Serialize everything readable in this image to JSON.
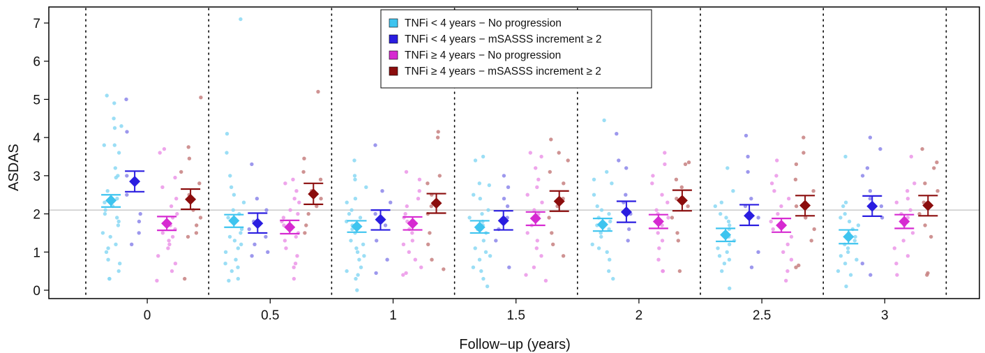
{
  "chart_data": {
    "type": "scatter",
    "xlabel": "Follow−up (years)",
    "ylabel": "ASDAS",
    "ylim": [
      -0.25,
      7.35
    ],
    "y_ticks": [
      "0",
      "1",
      "2",
      "3",
      "4",
      "5",
      "6",
      "7"
    ],
    "reference_line_y": 2.1,
    "categories": [
      "0",
      "0.5",
      "1",
      "1.5",
      "2",
      "2.5",
      "3"
    ],
    "legend": {
      "placement": "top-center",
      "entries": [
        {
          "label": "TNFi < 4 years − No progression",
          "color": "#3ec4ef"
        },
        {
          "label": "TNFi < 4 years − mSASSS increment  ≥ 2",
          "color": "#2a1de0"
        },
        {
          "label": "TNFi ≥ 4 years − No progression",
          "color": "#d62ad1"
        },
        {
          "label": "TNFi ≥ 4 years − mSASSS increment ≥ 2",
          "color": "#8b0d0d"
        }
      ]
    },
    "series": [
      {
        "name": "TNFi < 4 years − No progression",
        "color": "#3ec4ef",
        "light_color": "#8ad8f3",
        "mean": [
          2.35,
          1.82,
          1.67,
          1.65,
          1.72,
          1.45,
          1.4
        ],
        "ci_low": [
          2.18,
          1.65,
          1.52,
          1.5,
          1.55,
          1.28,
          1.22
        ],
        "ci_high": [
          2.5,
          1.98,
          1.82,
          1.82,
          1.88,
          1.62,
          1.58
        ],
        "points": [
          [
            4.9,
            5.1,
            4.5,
            4.3,
            4.25,
            3.8,
            3.8,
            3.6,
            3.2,
            3.0,
            2.95,
            2.6,
            2.4,
            2.3,
            2.2,
            2.1,
            2.0,
            1.9,
            1.8,
            1.7,
            1.5,
            1.4,
            1.2,
            1.1,
            1.0,
            0.8,
            0.7,
            0.5,
            0.3,
            0.3
          ],
          [
            7.1,
            4.1,
            3.6,
            3.0,
            2.7,
            2.5,
            2.3,
            2.1,
            2.0,
            1.9,
            1.8,
            1.6,
            1.5,
            1.4,
            1.3,
            1.2,
            1.1,
            1.0,
            0.8,
            0.7,
            0.6,
            0.5,
            0.3,
            0.25
          ],
          [
            3.4,
            3.0,
            2.9,
            2.7,
            2.4,
            2.3,
            2.1,
            2.0,
            1.9,
            1.8,
            1.7,
            1.6,
            1.5,
            1.3,
            1.2,
            1.1,
            1.0,
            0.9,
            0.8,
            0.6,
            0.5,
            0.4,
            0.3,
            0.0
          ],
          [
            3.5,
            3.4,
            2.8,
            2.75,
            2.5,
            2.4,
            2.1,
            2.0,
            1.9,
            1.8,
            1.7,
            1.6,
            1.5,
            1.3,
            1.1,
            1.0,
            0.9,
            0.8,
            0.6,
            0.5,
            0.3,
            0.1
          ],
          [
            4.45,
            3.1,
            2.9,
            2.8,
            2.5,
            2.2,
            2.1,
            2.0,
            1.9,
            1.8,
            1.7,
            1.6,
            1.5,
            1.4,
            1.2,
            1.1,
            1.0,
            0.8,
            0.5,
            0.3
          ],
          [
            3.2,
            2.6,
            2.3,
            2.2,
            2.0,
            1.9,
            1.8,
            1.7,
            1.6,
            1.5,
            1.4,
            1.3,
            1.2,
            1.1,
            1.0,
            0.9,
            0.8,
            0.7,
            0.5,
            0.05
          ],
          [
            3.5,
            2.3,
            2.2,
            2.0,
            1.9,
            1.8,
            1.7,
            1.6,
            1.5,
            1.4,
            1.3,
            1.2,
            1.1,
            1.0,
            0.9,
            0.8,
            0.7,
            0.5,
            0.4,
            0.1
          ]
        ]
      },
      {
        "name": "TNFi < 4 years − mSASSS increment  ≥ 2",
        "color": "#2a1de0",
        "light_color": "#8c86ea",
        "mean": [
          2.85,
          1.75,
          1.85,
          1.82,
          2.05,
          1.95,
          2.2
        ],
        "ci_low": [
          2.58,
          1.5,
          1.58,
          1.58,
          1.78,
          1.7,
          1.94
        ],
        "ci_high": [
          3.12,
          2.02,
          2.1,
          2.08,
          2.33,
          2.24,
          2.47
        ],
        "points": [
          [
            5.0,
            4.15,
            3.0,
            2.5,
            2.0,
            1.8,
            1.5,
            1.2
          ],
          [
            3.3,
            2.4,
            2.1,
            1.8,
            1.6,
            1.4,
            1.2,
            1.0,
            0.9
          ],
          [
            3.8,
            2.6,
            2.3,
            2.0,
            1.7,
            1.3,
            0.8,
            0.45
          ],
          [
            3.0,
            2.7,
            2.4,
            2.2,
            1.9,
            1.6,
            1.3,
            0.6
          ],
          [
            4.1,
            3.4,
            3.2,
            2.5,
            2.3,
            2.0,
            1.6,
            1.3
          ],
          [
            4.05,
            3.5,
            3.1,
            2.4,
            2.2,
            1.9,
            1.0,
            0.6
          ],
          [
            4.0,
            3.7,
            3.2,
            3.0,
            2.6,
            2.4,
            2.2,
            1.9,
            0.7,
            0.4
          ]
        ]
      },
      {
        "name": "TNFi ≥ 4 years − No progression",
        "color": "#d62ad1",
        "light_color": "#eb95e7",
        "mean": [
          1.75,
          1.65,
          1.75,
          1.88,
          1.8,
          1.7,
          1.8
        ],
        "ci_low": [
          1.57,
          1.48,
          1.58,
          1.7,
          1.62,
          1.52,
          1.62
        ],
        "ci_high": [
          1.93,
          1.83,
          1.92,
          2.05,
          1.98,
          1.88,
          1.98
        ],
        "points": [
          [
            3.7,
            3.6,
            2.95,
            2.7,
            2.4,
            2.2,
            2.0,
            1.9,
            1.8,
            1.7,
            1.6,
            1.5,
            1.4,
            1.3,
            1.2,
            1.1,
            0.9,
            0.7,
            0.5,
            0.25
          ],
          [
            2.9,
            2.8,
            2.6,
            2.4,
            2.3,
            2.1,
            2.0,
            1.9,
            1.8,
            1.7,
            1.5,
            1.4,
            1.3,
            1.1,
            0.9,
            0.7,
            0.6,
            0.3
          ],
          [
            3.1,
            2.9,
            2.6,
            2.4,
            2.2,
            2.0,
            1.9,
            1.8,
            1.6,
            1.5,
            1.3,
            1.2,
            1.0,
            0.8,
            0.6,
            0.45,
            0.4
          ],
          [
            3.6,
            3.5,
            3.2,
            2.9,
            2.7,
            2.5,
            2.3,
            2.1,
            2.0,
            1.9,
            1.7,
            1.5,
            1.3,
            1.1,
            0.9,
            0.6,
            0.4,
            0.25
          ],
          [
            3.6,
            3.3,
            3.0,
            2.8,
            2.5,
            2.3,
            2.1,
            2.0,
            1.9,
            1.7,
            1.5,
            1.3,
            1.1,
            0.8,
            0.5,
            0.5
          ],
          [
            3.4,
            3.0,
            2.8,
            2.6,
            2.4,
            2.2,
            2.0,
            1.8,
            1.6,
            1.4,
            1.2,
            1.0,
            0.8,
            0.5,
            0.25
          ],
          [
            3.5,
            2.8,
            2.6,
            2.4,
            2.3,
            2.1,
            2.0,
            1.9,
            1.7,
            1.5,
            1.3,
            1.1,
            0.9,
            0.7,
            0.4
          ]
        ]
      },
      {
        "name": "TNFi ≥ 4 years − mSASSS increment ≥ 2",
        "color": "#8b0d0d",
        "light_color": "#c78080",
        "mean": [
          2.38,
          2.52,
          2.28,
          2.33,
          2.35,
          2.22,
          2.22
        ],
        "ci_low": [
          2.12,
          2.25,
          2.02,
          2.07,
          2.08,
          1.95,
          1.95
        ],
        "ci_high": [
          2.65,
          2.8,
          2.53,
          2.6,
          2.62,
          2.48,
          2.48
        ],
        "points": [
          [
            5.05,
            3.75,
            3.45,
            3.1,
            2.8,
            2.5,
            2.1,
            1.9,
            1.7,
            1.5,
            1.4,
            0.3
          ],
          [
            5.2,
            3.45,
            3.1,
            2.9,
            2.6,
            2.4,
            2.2,
            2.0,
            1.7,
            1.5
          ],
          [
            4.15,
            4.0,
            3.0,
            2.8,
            2.5,
            2.2,
            2.0,
            1.5,
            1.2,
            0.8,
            0.55
          ],
          [
            3.95,
            3.6,
            3.4,
            3.1,
            2.8,
            2.4,
            2.2,
            1.9,
            1.5,
            1.2,
            0.9
          ],
          [
            3.35,
            3.3,
            2.9,
            2.7,
            2.4,
            2.2,
            1.9,
            1.5,
            1.3,
            0.5
          ],
          [
            4.0,
            3.6,
            3.3,
            2.9,
            2.6,
            2.2,
            1.9,
            1.6,
            1.3,
            0.65,
            0.6
          ],
          [
            3.7,
            3.35,
            3.2,
            2.8,
            2.6,
            2.3,
            2.0,
            1.7,
            1.4,
            0.45,
            0.4
          ]
        ]
      }
    ]
  }
}
